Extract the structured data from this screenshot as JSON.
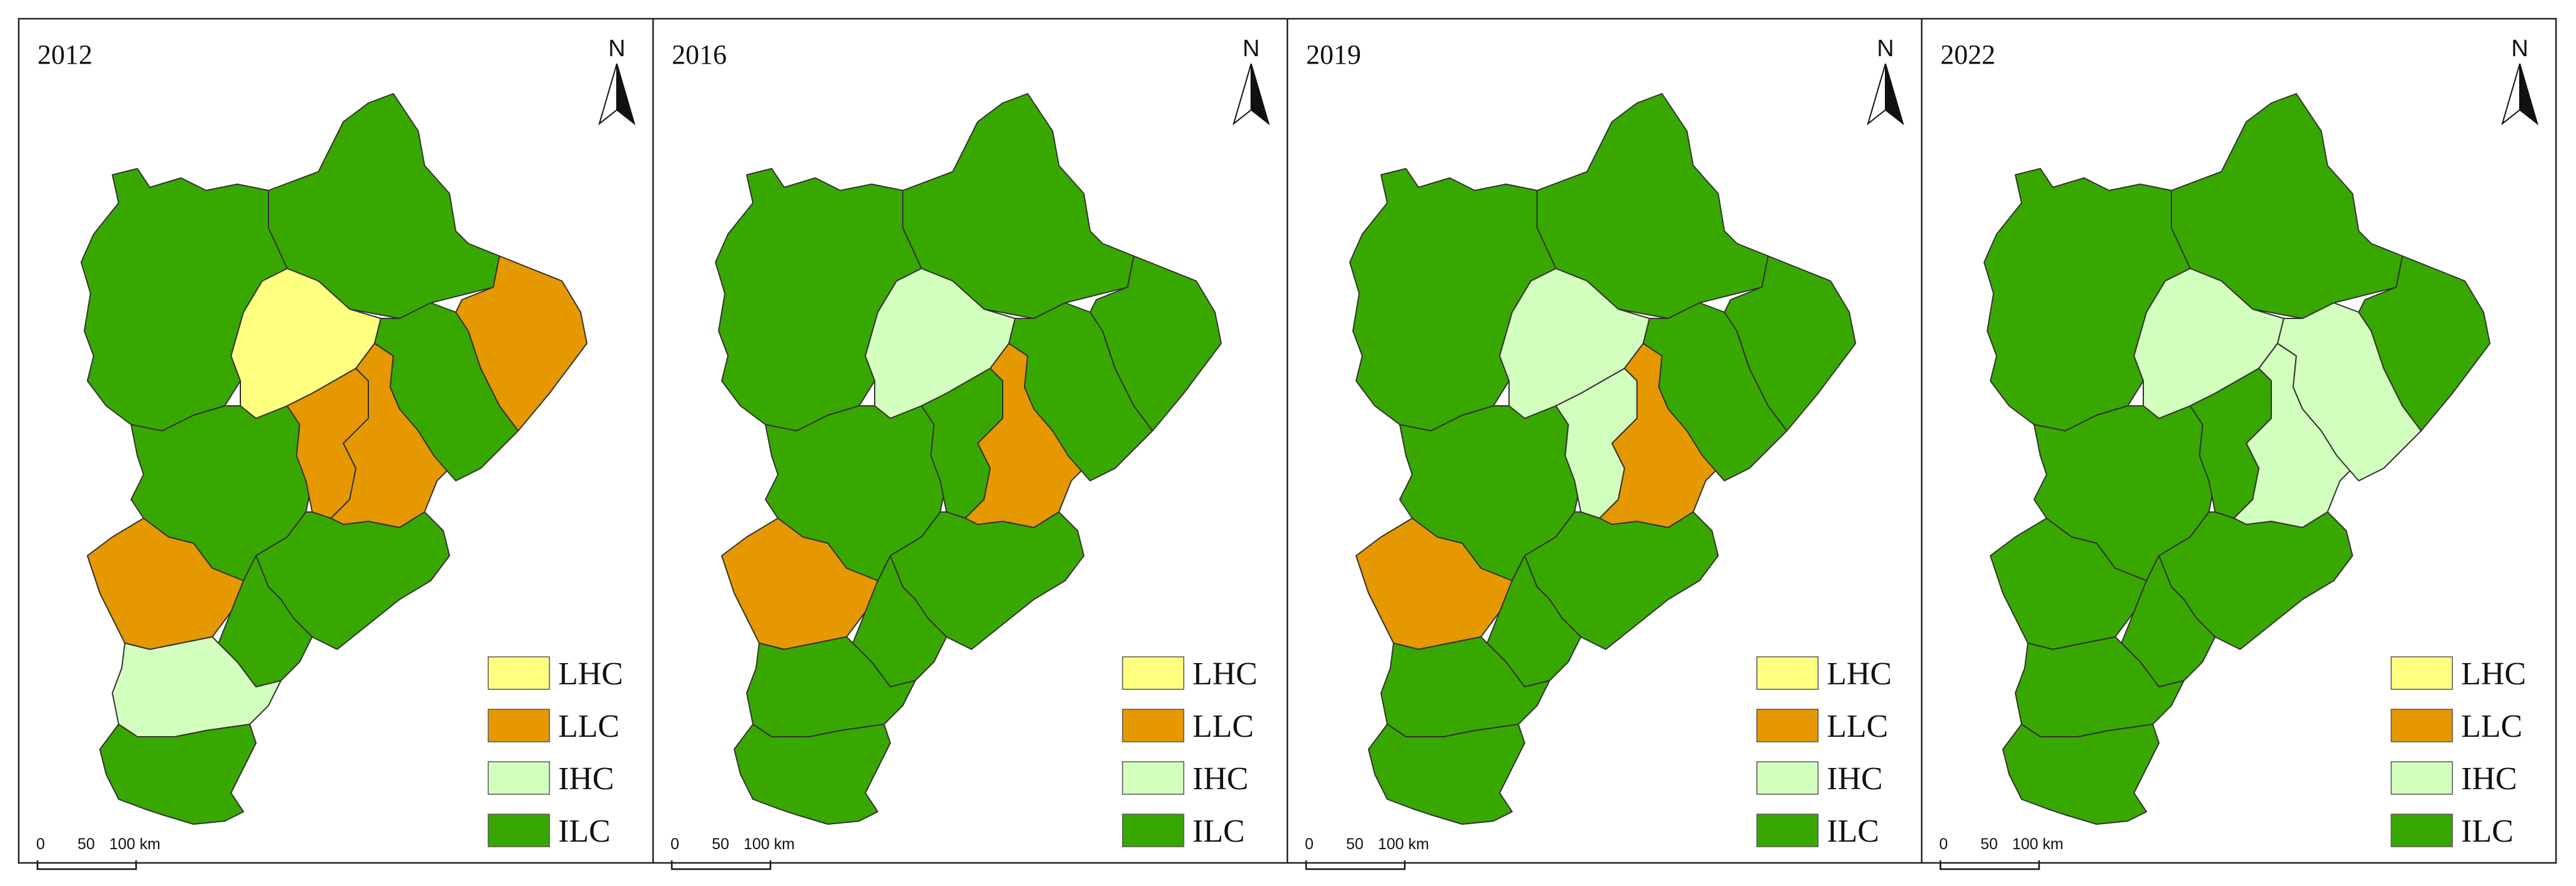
{
  "colors": {
    "LHC": "#ffff80",
    "LLC": "#e69800",
    "IHC": "#d3ffbe",
    "ILC": "#38a800",
    "border": "#333333",
    "frame": "#222222"
  },
  "north_label": "N",
  "scale": {
    "labels": [
      "0",
      "50",
      "100 km"
    ]
  },
  "legend": [
    {
      "code": "LHC",
      "label": "LHC"
    },
    {
      "code": "LLC",
      "label": "LLC"
    },
    {
      "code": "IHC",
      "label": "IHC"
    },
    {
      "code": "ILC",
      "label": "ILC"
    }
  ],
  "regions": [
    "chengde",
    "zhangjiakou",
    "baoding",
    "beijing",
    "langfang",
    "tianjin",
    "tangshan",
    "qinhuangdao",
    "cangzhou",
    "shijiazhuang",
    "hengshui",
    "xingtai",
    "handan"
  ],
  "panels": [
    {
      "year": "2012",
      "classes": {
        "chengde": "ILC",
        "zhangjiakou": "ILC",
        "baoding": "ILC",
        "beijing": "LHC",
        "langfang": "LLC",
        "tianjin": "LLC",
        "tangshan": "ILC",
        "qinhuangdao": "LLC",
        "cangzhou": "ILC",
        "shijiazhuang": "LLC",
        "hengshui": "ILC",
        "xingtai": "IHC",
        "handan": "ILC"
      }
    },
    {
      "year": "2016",
      "classes": {
        "chengde": "ILC",
        "zhangjiakou": "ILC",
        "baoding": "ILC",
        "beijing": "IHC",
        "langfang": "ILC",
        "tianjin": "LLC",
        "tangshan": "ILC",
        "qinhuangdao": "ILC",
        "cangzhou": "ILC",
        "shijiazhuang": "LLC",
        "hengshui": "ILC",
        "xingtai": "ILC",
        "handan": "ILC"
      }
    },
    {
      "year": "2019",
      "classes": {
        "chengde": "ILC",
        "zhangjiakou": "ILC",
        "baoding": "ILC",
        "beijing": "IHC",
        "langfang": "IHC",
        "tianjin": "LLC",
        "tangshan": "ILC",
        "qinhuangdao": "ILC",
        "cangzhou": "ILC",
        "shijiazhuang": "LLC",
        "hengshui": "ILC",
        "xingtai": "ILC",
        "handan": "ILC"
      }
    },
    {
      "year": "2022",
      "classes": {
        "chengde": "ILC",
        "zhangjiakou": "ILC",
        "baoding": "ILC",
        "beijing": "IHC",
        "langfang": "ILC",
        "tianjin": "IHC",
        "tangshan": "IHC",
        "qinhuangdao": "ILC",
        "cangzhou": "ILC",
        "shijiazhuang": "ILC",
        "hengshui": "ILC",
        "xingtai": "ILC",
        "handan": "ILC"
      }
    }
  ]
}
